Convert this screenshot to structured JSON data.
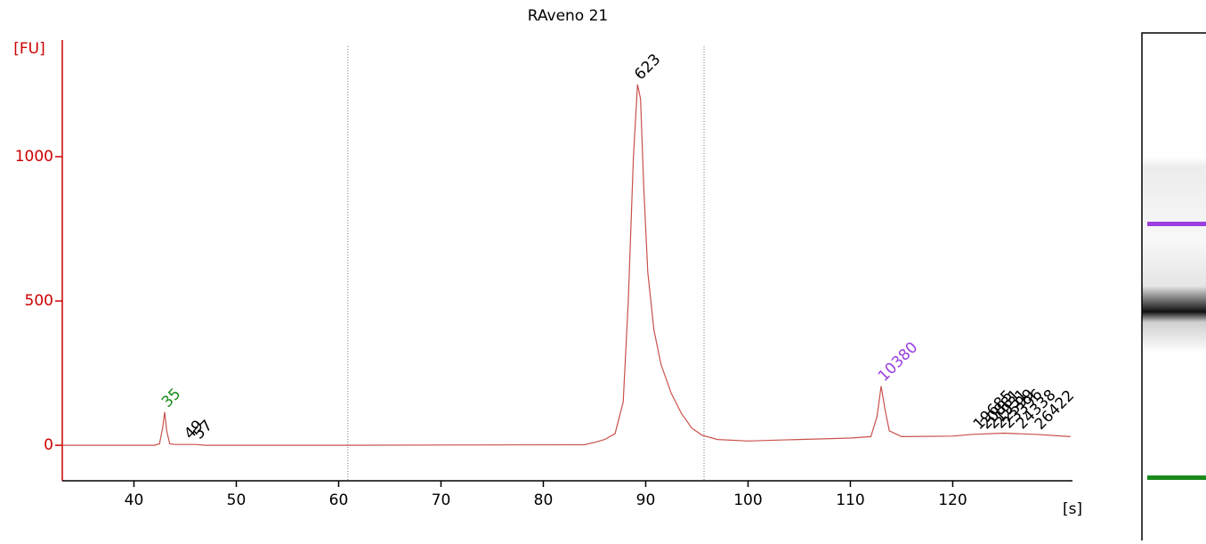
{
  "chart_data": {
    "type": "line",
    "title": "RAveno 21",
    "y_label": "[FU]",
    "x_label": "[s]",
    "color": "#c9504b",
    "axis_color": "#cc0000",
    "x": [
      33,
      42,
      42.5,
      42.8,
      43,
      43.2,
      43.5,
      44,
      46,
      47,
      60,
      84,
      85,
      86,
      87,
      87.8,
      88.3,
      88.8,
      89.2,
      89.5,
      89.8,
      90.2,
      90.8,
      91.5,
      92.5,
      93.5,
      94.5,
      95.5,
      97,
      100,
      105,
      110,
      112,
      112.6,
      113,
      113.4,
      113.8,
      115,
      120,
      122,
      125,
      128,
      131.5
    ],
    "values": [
      0,
      0,
      5,
      60,
      115,
      50,
      5,
      3,
      3,
      0,
      0,
      2,
      10,
      20,
      40,
      150,
      500,
      1000,
      1250,
      1200,
      900,
      600,
      400,
      280,
      180,
      110,
      60,
      35,
      20,
      15,
      20,
      25,
      30,
      100,
      205,
      120,
      50,
      30,
      32,
      38,
      42,
      38,
      30
    ],
    "xlim": [
      33,
      131.7
    ],
    "ylim": [
      -123,
      1404
    ],
    "xticks": [
      40,
      50,
      60,
      70,
      80,
      90,
      100,
      110,
      120
    ],
    "yticks": [
      0,
      500,
      1000
    ],
    "vlines": [
      60.9,
      95.7
    ],
    "peaks": [
      {
        "label": "35",
        "x": 43,
        "y": 115,
        "color": "#1a8a1a"
      },
      {
        "label": "49",
        "x": 45.2,
        "y": 5,
        "color": "#000000"
      },
      {
        "label": "57",
        "x": 46.1,
        "y": 5,
        "color": "#000000"
      },
      {
        "label": "623",
        "x": 89.2,
        "y": 1250,
        "color": "#000000"
      },
      {
        "label": "10380",
        "x": 113,
        "y": 205,
        "color": "#9b3fe0"
      },
      {
        "label": "19685",
        "x": 122.3,
        "y": 38,
        "color": "#000000"
      },
      {
        "label": "20881",
        "x": 123,
        "y": 40,
        "color": "#000000"
      },
      {
        "label": "21931",
        "x": 123.7,
        "y": 41,
        "color": "#000000"
      },
      {
        "label": "22599",
        "x": 124.4,
        "y": 42,
        "color": "#000000"
      },
      {
        "label": "23396",
        "x": 125.2,
        "y": 42,
        "color": "#000000"
      },
      {
        "label": "24338",
        "x": 126.5,
        "y": 40,
        "color": "#000000"
      },
      {
        "label": "26422",
        "x": 128.3,
        "y": 38,
        "color": "#000000"
      }
    ]
  }
}
